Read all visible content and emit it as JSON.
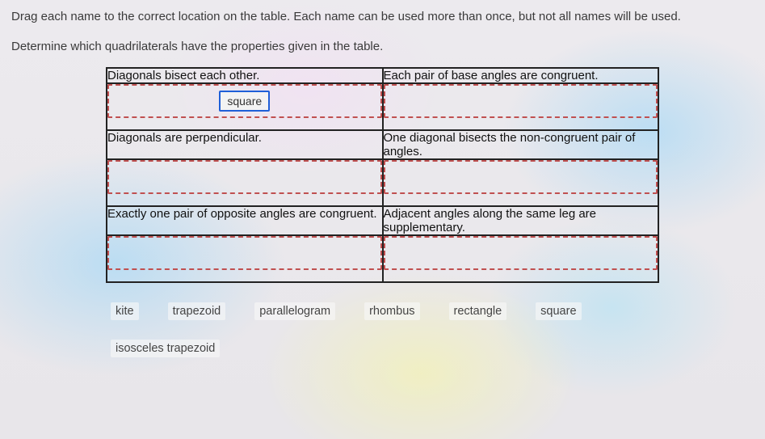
{
  "instructions": {
    "line1": "Drag each name to the correct location on the table. Each name can be used more than once, but not all names will be used.",
    "line2": "Determine which quadrilaterals have the properties given in the table."
  },
  "table": {
    "rows": [
      {
        "left_header": "Diagonals bisect each other.",
        "right_header": "Each pair of base angles are congruent.",
        "left_placed": "square",
        "right_placed": ""
      },
      {
        "left_header": "Diagonals are perpendicular.",
        "right_header": "One diagonal bisects the non-congruent pair of angles.",
        "left_placed": "",
        "right_placed": ""
      },
      {
        "left_header": "Exactly one pair of opposite angles are congruent.",
        "right_header": "Adjacent angles along the same leg are supplementary.",
        "left_placed": "",
        "right_placed": ""
      }
    ]
  },
  "choices": {
    "row1": [
      "kite",
      "trapezoid",
      "parallelogram",
      "rhombus",
      "rectangle",
      "square"
    ],
    "row2": [
      "isosceles trapezoid"
    ]
  },
  "style": {
    "table_border_color": "#222222",
    "dropzone_border_color": "#c05050",
    "placed_tile_border_color": "#1f5fd8",
    "header_font": "Century Gothic",
    "body_text_color": "#3a3a3a"
  }
}
